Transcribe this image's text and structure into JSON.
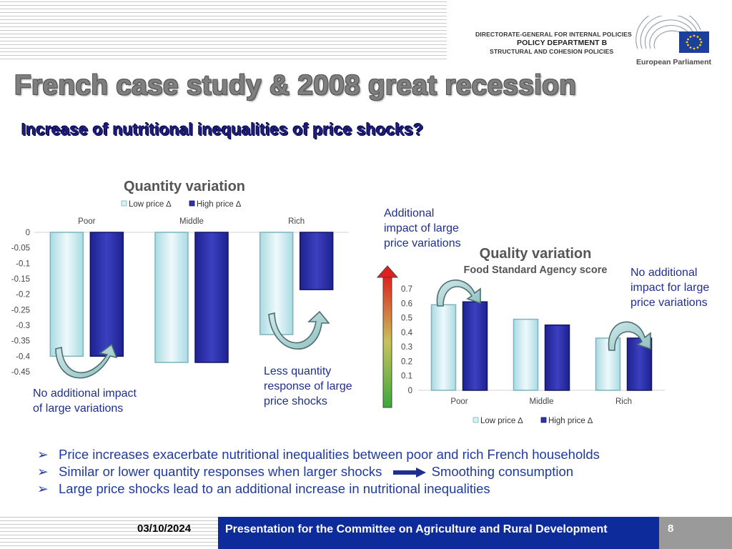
{
  "header": {
    "dg_line1": "DIRECTORATE-GENERAL FOR INTERNAL POLICIES",
    "dg_line2": "POLICY DEPARTMENT B",
    "dg_line3": "STRUCTURAL AND COHESION POLICIES",
    "ep_name": "European Parliament",
    "colors": {
      "ep_blue": "#1d3f9c",
      "ep_gold": "#ffd200"
    }
  },
  "title": "French case study & 2008 great recession",
  "subtitle": "Increase of nutritional inequalities of price shocks?",
  "notes": {
    "no_additional_impact": [
      "No additional impact",
      "of large variations"
    ],
    "less_quantity": [
      "Less quantity",
      "response of large",
      "price shocks"
    ],
    "additional_impact": [
      "Additional",
      "impact of large",
      "price variations"
    ],
    "no_additional_impact_large": [
      "No additional",
      "impact for large",
      "price variations"
    ]
  },
  "chart_data": [
    {
      "type": "bar",
      "title": "Quantity variation",
      "categories": [
        "Poor",
        "Middle",
        "Rich"
      ],
      "series": [
        {
          "name": "Low  price ∆",
          "values": [
            -0.4,
            -0.42,
            -0.33
          ],
          "color": "#d9f0f4"
        },
        {
          "name": "High price  ∆",
          "values": [
            -0.4,
            -0.42,
            -0.185
          ],
          "color": "#2f33a8"
        }
      ],
      "y_ticks": [
        "0",
        "-0.05",
        "-0.1",
        "-0.15",
        "-0.2",
        "-0.25",
        "-0.3",
        "-0.35",
        "-0.4",
        "-0.45"
      ],
      "tick_values": [
        0,
        -0.05,
        -0.1,
        -0.15,
        -0.2,
        -0.25,
        -0.3,
        -0.35,
        -0.4,
        -0.45
      ],
      "ylim": [
        -0.45,
        0
      ],
      "legend_position": "top",
      "category_labels_position": "top",
      "grid": false
    },
    {
      "type": "bar",
      "title": "Quality variation",
      "subtitle": "Food Standard Agency score",
      "categories": [
        "Poor",
        "Middle",
        "Rich"
      ],
      "series": [
        {
          "name": "Low  price ∆",
          "values": [
            0.59,
            0.49,
            0.36
          ],
          "color": "#d9f0f4"
        },
        {
          "name": "High price  ∆",
          "values": [
            0.61,
            0.45,
            0.36
          ],
          "color": "#2f33a8"
        }
      ],
      "y_ticks": [
        "0",
        "0.1",
        "0.2",
        "0.3",
        "0.4",
        "0.5",
        "0.6",
        "0.7"
      ],
      "tick_values": [
        0,
        0.1,
        0.2,
        0.3,
        0.4,
        0.5,
        0.6,
        0.7
      ],
      "ylim": [
        0,
        0.7
      ],
      "legend_position": "bottom",
      "grid": false
    }
  ],
  "bullets": [
    "Price increases exacerbate nutritional inequalities between poor and rich French households",
    "Similar or lower quantity responses when larger shocks",
    "Smoothing consumption",
    "Large price shocks lead to an additional increase in nutritional inequalities"
  ],
  "footer": {
    "date": "03/10/2024",
    "presentation": "Presentation for the Committee on Agriculture and Rural Development",
    "page": "8"
  }
}
